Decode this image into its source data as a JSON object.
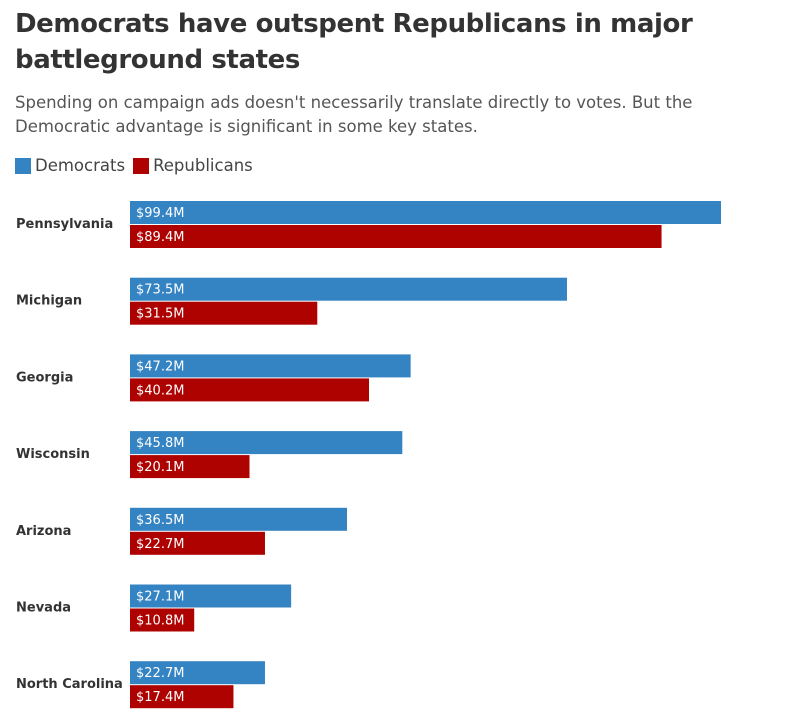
{
  "chart_data": {
    "type": "bar",
    "orientation": "horizontal",
    "title": "Democrats have outspent Republicans in major battleground states",
    "subtitle": "Spending on campaign ads doesn't necessarily translate directly to votes. But the Democratic advantage is significant in some key states.",
    "categories": [
      "Pennsylvania",
      "Michigan",
      "Georgia",
      "Wisconsin",
      "Arizona",
      "Nevada",
      "North Carolina"
    ],
    "series": [
      {
        "name": "Democrats",
        "color": "#3483c3",
        "values": [
          99.4,
          73.5,
          47.2,
          45.8,
          36.5,
          27.1,
          22.7
        ],
        "labels": [
          "$99.4M",
          "$73.5M",
          "$47.2M",
          "$45.8M",
          "$36.5M",
          "$27.1M",
          "$22.7M"
        ]
      },
      {
        "name": "Republicans",
        "color": "#ad0200",
        "values": [
          89.4,
          31.5,
          40.2,
          20.1,
          22.7,
          10.8,
          17.4
        ],
        "labels": [
          "$89.4M",
          "$31.5M",
          "$40.2M",
          "$20.1M",
          "$22.7M",
          "$10.8M",
          "$17.4M"
        ]
      }
    ],
    "xlabel": "",
    "ylabel": "",
    "xlim": [
      0,
      99.4
    ],
    "grid": false,
    "legend_position": "top-left"
  }
}
